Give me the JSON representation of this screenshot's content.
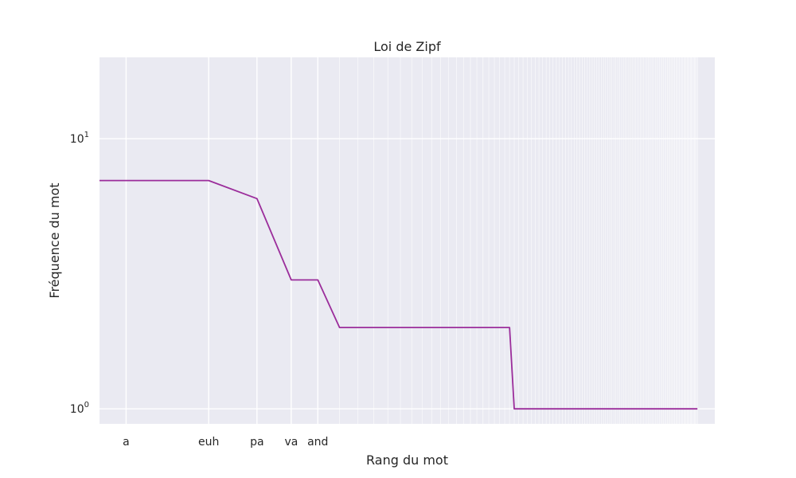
{
  "chart_data": {
    "type": "line",
    "title": "Loi de Zipf",
    "xlabel": "Rang du mot",
    "ylabel": "Fréquence du mot",
    "x_scale": "log",
    "y_scale": "log",
    "ylim": [
      0.88,
      20
    ],
    "grid": true,
    "line_color": "#9b2d9b",
    "background_color": "#eaeaf2",
    "grid_color": "#ffffff",
    "y_ticks": [
      {
        "value": 1,
        "base": "10",
        "exp": "0"
      },
      {
        "value": 10,
        "base": "10",
        "exp": "1"
      }
    ],
    "x_tick_labels": [
      "a",
      "euh",
      "pa",
      "va",
      "and"
    ],
    "x": [
      1,
      2,
      3,
      4,
      5,
      6,
      7,
      8,
      9,
      10,
      11,
      12,
      13,
      14,
      15,
      16,
      17,
      18,
      19,
      20,
      21,
      22,
      23,
      24,
      25,
      26,
      27,
      28,
      29,
      30,
      31,
      32,
      33,
      34,
      35,
      36,
      37,
      38,
      39,
      40,
      41,
      42,
      43,
      44,
      45,
      46,
      47,
      48,
      49,
      50,
      51,
      52,
      53,
      54,
      55,
      56,
      57,
      58,
      59,
      60,
      61,
      62,
      63,
      64,
      65,
      66,
      67,
      68,
      69,
      70,
      71,
      72,
      73,
      74,
      75,
      76,
      77,
      78,
      79,
      80,
      81,
      82,
      83,
      84,
      85,
      86,
      87,
      88,
      89,
      90,
      91,
      92,
      93,
      94,
      95,
      96,
      97,
      98,
      99,
      100,
      101,
      102,
      103,
      104,
      105,
      106,
      107,
      108,
      109,
      110,
      111,
      112,
      113,
      114,
      115,
      116,
      117,
      118,
      119,
      120,
      121
    ],
    "y": [
      7,
      7,
      6,
      3,
      3,
      2,
      2,
      2,
      2,
      2,
      2,
      2,
      2,
      2,
      2,
      2,
      2,
      2,
      2,
      2,
      2,
      2,
      2,
      2,
      2,
      1,
      1,
      1,
      1,
      1,
      1,
      1,
      1,
      1,
      1,
      1,
      1,
      1,
      1,
      1,
      1,
      1,
      1,
      1,
      1,
      1,
      1,
      1,
      1,
      1,
      1,
      1,
      1,
      1,
      1,
      1,
      1,
      1,
      1,
      1,
      1,
      1,
      1,
      1,
      1,
      1,
      1,
      1,
      1,
      1,
      1,
      1,
      1,
      1,
      1,
      1,
      1,
      1,
      1,
      1,
      1,
      1,
      1,
      1,
      1,
      1,
      1,
      1,
      1,
      1,
      1,
      1,
      1,
      1,
      1,
      1,
      1,
      1,
      1,
      1,
      1,
      1,
      1,
      1,
      1,
      1,
      1,
      1,
      1,
      1,
      1,
      1,
      1,
      1,
      1,
      1,
      1,
      1,
      1,
      1,
      1
    ]
  }
}
